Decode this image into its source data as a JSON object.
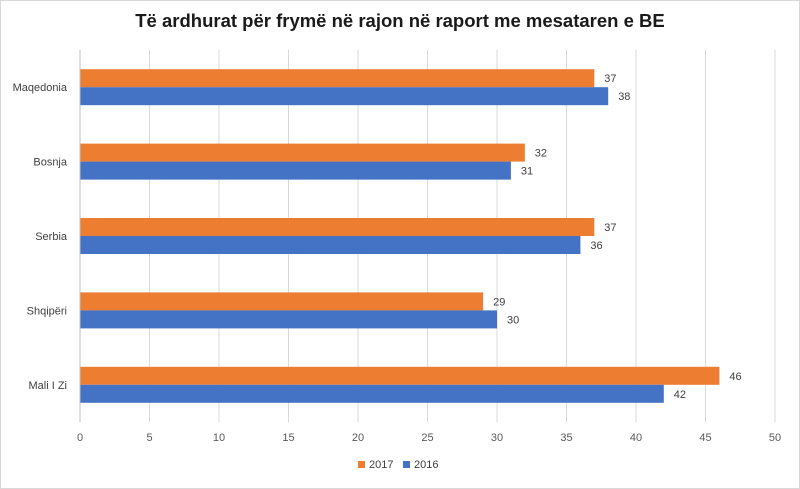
{
  "chart_data": {
    "type": "bar",
    "orientation": "horizontal",
    "title": "Të ardhurat për frymë në rajon në raport me mesataren e BE",
    "categories": [
      "Maqedonia",
      "Bosnja",
      "Serbia",
      "Shqipëri",
      "Mali I Zi"
    ],
    "series": [
      {
        "name": "2017",
        "color": "#ED7D31",
        "values": [
          37,
          32,
          37,
          29,
          46
        ]
      },
      {
        "name": "2016",
        "color": "#4472C4",
        "values": [
          38,
          31,
          36,
          30,
          42
        ]
      }
    ],
    "xlim": [
      0,
      50
    ],
    "xticks": [
      0,
      5,
      10,
      15,
      20,
      25,
      30,
      35,
      40,
      45,
      50
    ],
    "grid": "vertical",
    "legend": "bottom",
    "data_labels": true
  }
}
